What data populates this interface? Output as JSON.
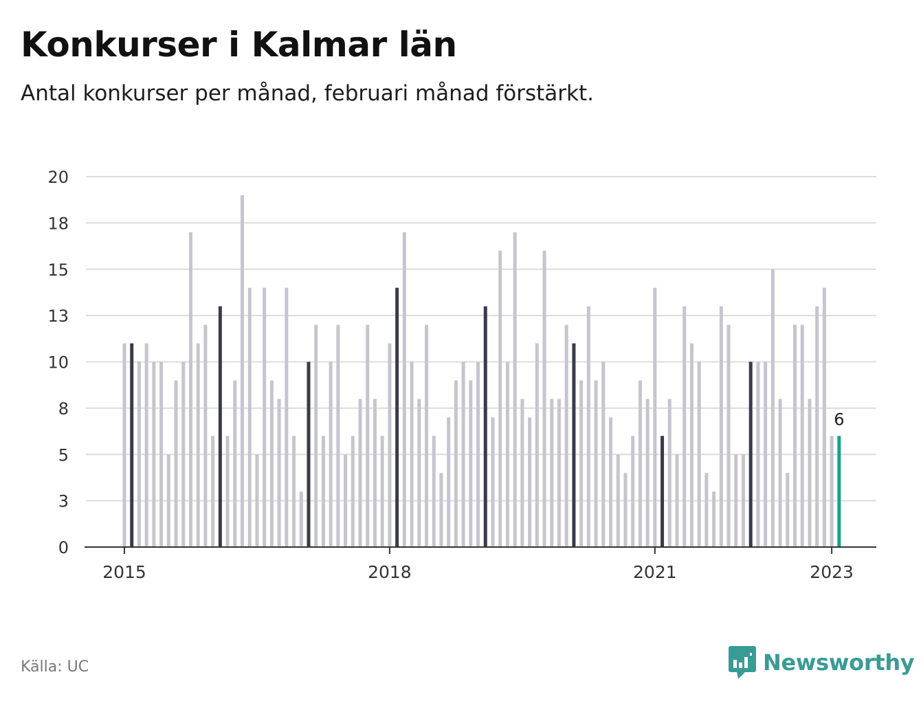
{
  "header": {
    "title": "Konkurser i Kalmar län",
    "subtitle": "Antal konkurser per månad, februari månad förstärkt."
  },
  "footer": {
    "source": "Källa: UC",
    "brand": "Newsworthy"
  },
  "colors": {
    "bar": "#c6c5cf",
    "february": "#3b3a4a",
    "latest": "#1b9e90",
    "grid": "#dcdcdc",
    "axis": "#333333",
    "brand": "#3a9b95"
  },
  "icons": {
    "logo": "newsworthy-logo-icon"
  },
  "chart_data": {
    "type": "bar",
    "title": "Konkurser i Kalmar län",
    "xlabel": "",
    "ylabel": "",
    "ylim": [
      0,
      20
    ],
    "yticks": [
      0,
      3,
      5,
      8,
      10,
      13,
      15,
      18,
      20
    ],
    "xticks": [
      "2015",
      "2018",
      "2021",
      "2023"
    ],
    "grid": true,
    "highlight": "February bars dark; latest bar teal with data label",
    "latest_label": "6",
    "series": [
      {
        "values": [
          11,
          11,
          10,
          11,
          10,
          10,
          5,
          9,
          10,
          17,
          11,
          12,
          6,
          13,
          6,
          9,
          19,
          14,
          5,
          14,
          9,
          8,
          14,
          6,
          3,
          10,
          12,
          6,
          10,
          12,
          5,
          6,
          8,
          12,
          8,
          6,
          11,
          14,
          17,
          10,
          8,
          12,
          6,
          4,
          7,
          9,
          10,
          9,
          10,
          13,
          7,
          16,
          10,
          17,
          8,
          7,
          11,
          16,
          8,
          8,
          12,
          11,
          9,
          13,
          9,
          10,
          7,
          5,
          4,
          6,
          9,
          8,
          14,
          6,
          8,
          5,
          13,
          11,
          10,
          4,
          3,
          13,
          12,
          5,
          5,
          10,
          10,
          10,
          15,
          8,
          4,
          12,
          12,
          8,
          13,
          14,
          6,
          6
        ]
      }
    ],
    "start": "2015-01",
    "end": "2023-02"
  }
}
